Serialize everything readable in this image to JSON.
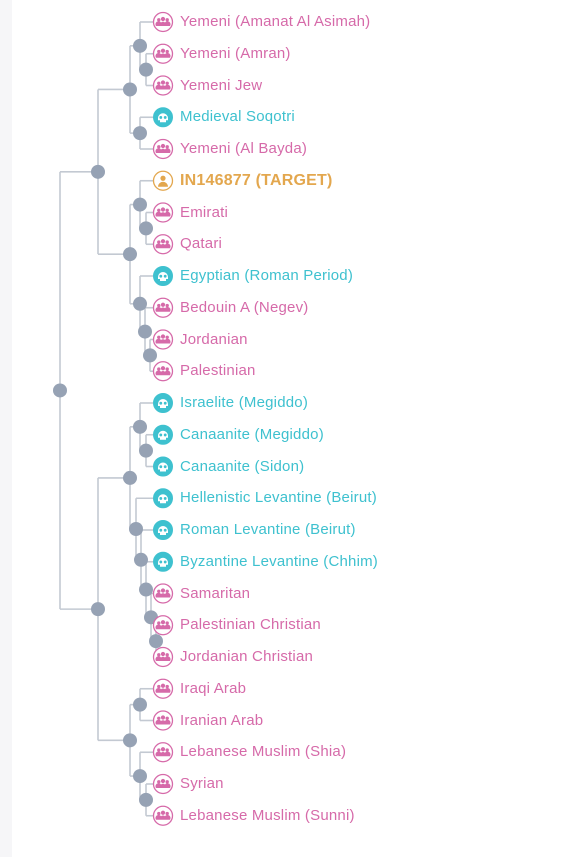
{
  "colors": {
    "modern": "#d66aa9",
    "ancient": "#3ec1cf",
    "target": "#e3a74e",
    "branch": "#c3c9d2",
    "node": "#96a2b4"
  },
  "icons": {
    "modern": "people-group-icon",
    "ancient": "skull-icon",
    "target": "person-icon"
  },
  "leaves": [
    {
      "label": "Yemeni (Amanat Al Asimah)",
      "kind": "modern"
    },
    {
      "label": "Yemeni (Amran)",
      "kind": "modern"
    },
    {
      "label": "Yemeni Jew",
      "kind": "modern"
    },
    {
      "label": "Medieval Soqotri",
      "kind": "ancient"
    },
    {
      "label": "Yemeni (Al Bayda)",
      "kind": "modern"
    },
    {
      "label": "IN146877 (TARGET)",
      "kind": "target"
    },
    {
      "label": "Emirati",
      "kind": "modern"
    },
    {
      "label": "Qatari",
      "kind": "modern"
    },
    {
      "label": "Egyptian (Roman Period)",
      "kind": "ancient"
    },
    {
      "label": "Bedouin A (Negev)",
      "kind": "modern"
    },
    {
      "label": "Jordanian",
      "kind": "modern"
    },
    {
      "label": "Palestinian",
      "kind": "modern"
    },
    {
      "label": "Israelite (Megiddo)",
      "kind": "ancient"
    },
    {
      "label": "Canaanite (Megiddo)",
      "kind": "ancient"
    },
    {
      "label": "Canaanite (Sidon)",
      "kind": "ancient"
    },
    {
      "label": "Hellenistic Levantine (Beirut)",
      "kind": "ancient"
    },
    {
      "label": "Roman Levantine (Beirut)",
      "kind": "ancient"
    },
    {
      "label": "Byzantine Levantine (Chhim)",
      "kind": "ancient"
    },
    {
      "label": "Samaritan",
      "kind": "modern"
    },
    {
      "label": "Palestinian Christian",
      "kind": "modern"
    },
    {
      "label": "Jordanian Christian",
      "kind": "modern"
    },
    {
      "label": "Iraqi Arab",
      "kind": "modern"
    },
    {
      "label": "Iranian Arab",
      "kind": "modern"
    },
    {
      "label": "Lebanese Muslim (Shia)",
      "kind": "modern"
    },
    {
      "label": "Syrian",
      "kind": "modern"
    },
    {
      "label": "Lebanese Muslim (Sunni)",
      "kind": "modern"
    }
  ],
  "tree": {
    "children": [
      {
        "children": [
          {
            "children": [
              {
                "children": [
                  {
                    "leaf": 0
                  },
                  {
                    "children": [
                      {
                        "leaf": 1
                      },
                      {
                        "leaf": 2
                      }
                    ]
                  }
                ]
              },
              {
                "children": [
                  {
                    "leaf": 3
                  },
                  {
                    "leaf": 4
                  }
                ]
              }
            ]
          },
          {
            "children": [
              {
                "children": [
                  {
                    "leaf": 5
                  },
                  {
                    "children": [
                      {
                        "leaf": 6
                      },
                      {
                        "leaf": 7
                      }
                    ]
                  }
                ]
              },
              {
                "children": [
                  {
                    "leaf": 8
                  },
                  {
                    "children": [
                      {
                        "leaf": 9
                      },
                      {
                        "children": [
                          {
                            "leaf": 10
                          },
                          {
                            "leaf": 11
                          }
                        ]
                      }
                    ]
                  }
                ]
              }
            ]
          }
        ]
      },
      {
        "children": [
          {
            "children": [
              {
                "children": [
                  {
                    "leaf": 12
                  },
                  {
                    "children": [
                      {
                        "leaf": 13
                      },
                      {
                        "leaf": 14
                      }
                    ]
                  }
                ]
              },
              {
                "children": [
                  {
                    "leaf": 15
                  },
                  {
                    "children": [
                      {
                        "leaf": 16
                      },
                      {
                        "children": [
                          {
                            "leaf": 17
                          },
                          {
                            "children": [
                              {
                                "leaf": 18
                              },
                              {
                                "children": [
                                  {
                                    "leaf": 19
                                  },
                                  {
                                    "leaf": 20
                                  }
                                ]
                              }
                            ]
                          }
                        ]
                      }
                    ]
                  }
                ]
              }
            ]
          },
          {
            "children": [
              {
                "children": [
                  {
                    "leaf": 21
                  },
                  {
                    "leaf": 22
                  }
                ]
              },
              {
                "children": [
                  {
                    "leaf": 23
                  },
                  {
                    "children": [
                      {
                        "leaf": 24
                      },
                      {
                        "leaf": 25
                      }
                    ]
                  }
                ]
              }
            ]
          }
        ]
      }
    ]
  }
}
